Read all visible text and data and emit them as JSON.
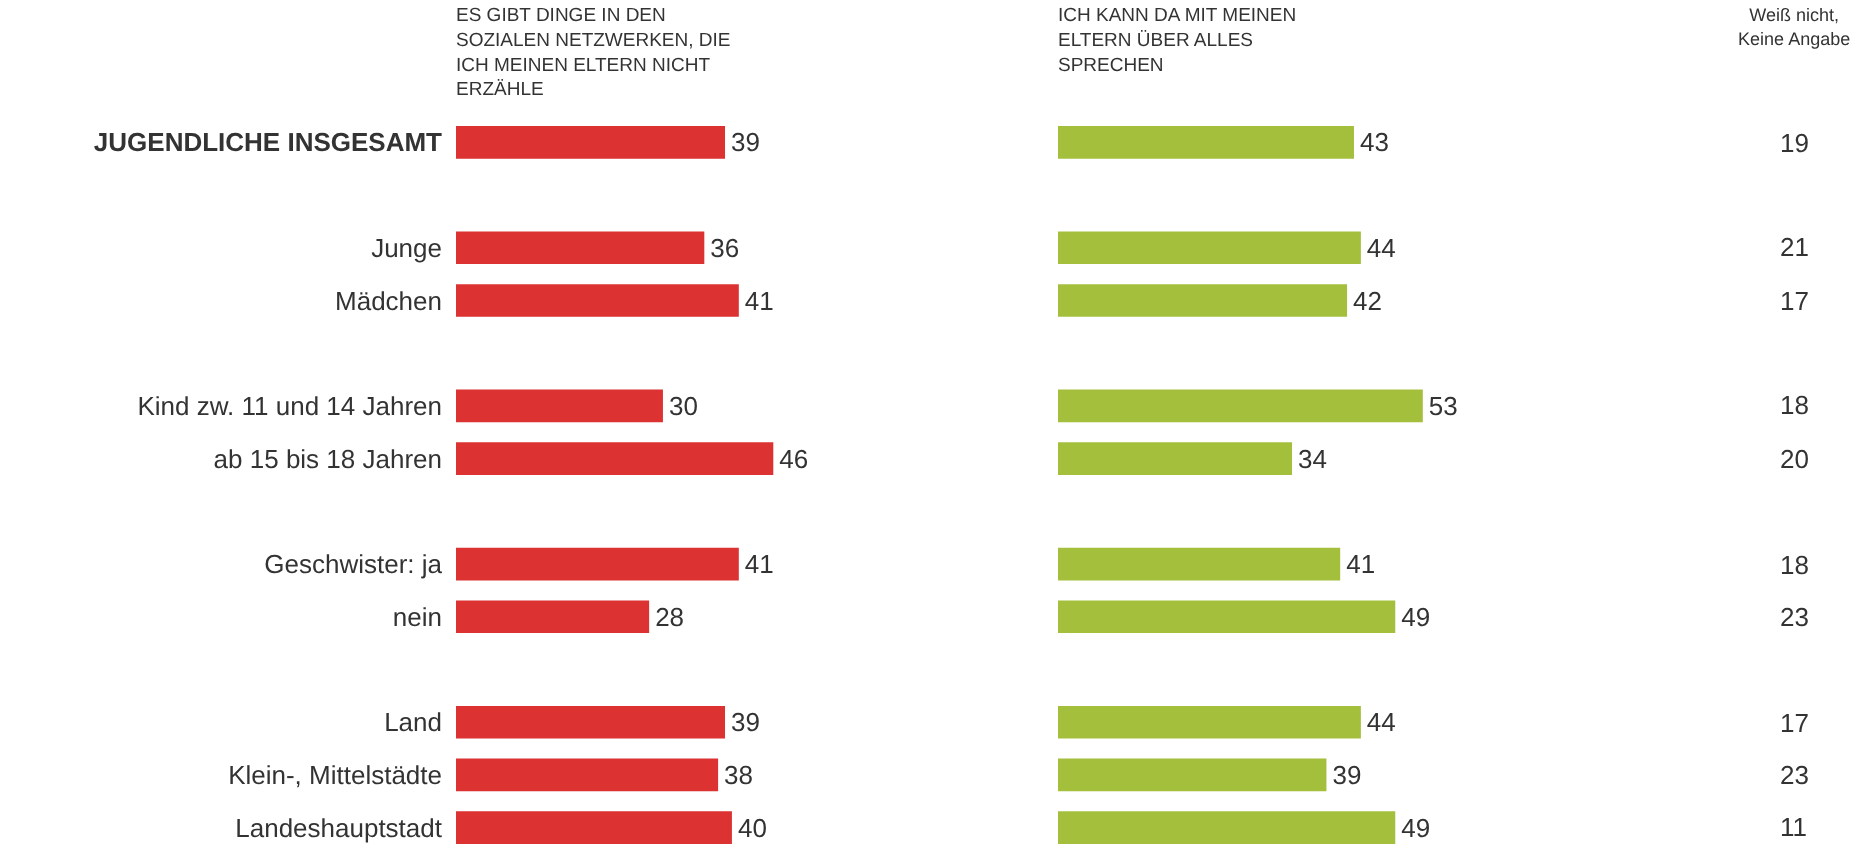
{
  "chart_data": [
    {
      "type": "bar",
      "orientation": "horizontal",
      "title": "ES GIBT DINGE IN DEN SOZIALEN NETZWERKEN, DIE ICH MEINEN ELTERN NICHT ERZÄHLE",
      "categories": [
        "JUGENDLICHE INSGESAMT",
        null,
        "Junge",
        "Mädchen",
        null,
        "Kind zw. 11 und 14 Jahren",
        "ab 15 bis 18 Jahren",
        null,
        "Geschwister: ja",
        "nein",
        null,
        "Land",
        "Klein-, Mittelstädte",
        "Landeshauptstadt"
      ],
      "values": [
        39,
        null,
        36,
        41,
        null,
        30,
        46,
        null,
        41,
        28,
        null,
        39,
        38,
        40
      ],
      "color": "#dc3232",
      "data_labels": true,
      "tick_labels": "y"
    },
    {
      "type": "bar",
      "orientation": "horizontal",
      "title": "ICH KANN DA MIT MEINEN ELTERN ÜBER ALLES SPRECHEN",
      "values": [
        43,
        null,
        44,
        42,
        null,
        53,
        34,
        null,
        41,
        49,
        null,
        44,
        39,
        49
      ],
      "color": "#a3bf3c",
      "data_labels": true
    },
    {
      "type": "other",
      "title": "Weiß nicht, Keine Angabe",
      "annotations": [
        "19",
        "21",
        "17",
        "18",
        "20",
        "18",
        "23",
        "17",
        "23",
        "11"
      ]
    }
  ]
}
